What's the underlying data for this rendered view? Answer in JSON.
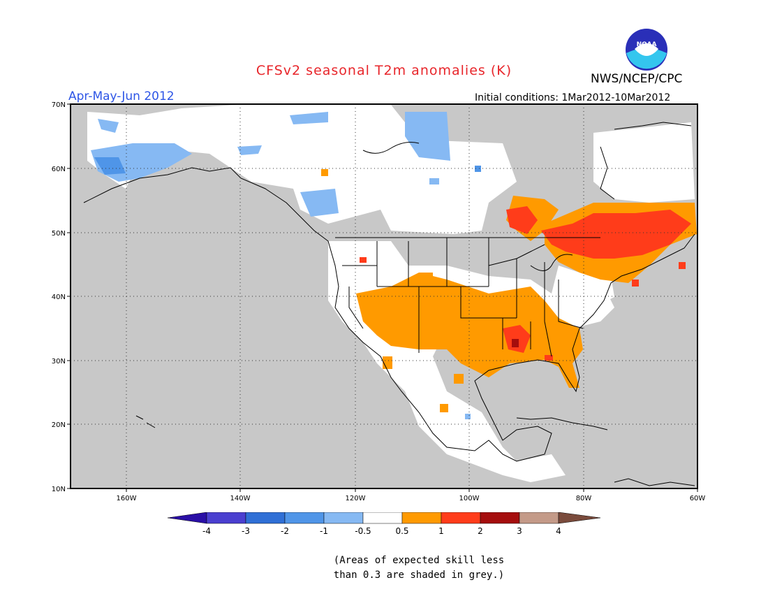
{
  "header": {
    "title": "CFSv2 seasonal T2m anomalies (K)",
    "period": "Apr-May-Jun 2012",
    "agency": "NWS/NCEP/CPC",
    "initial_conditions": "Initial conditions: 1Mar2012-10Mar2012",
    "logo_text": "NOAA"
  },
  "map": {
    "lat_labels": [
      "70N",
      "60N",
      "50N",
      "40N",
      "30N",
      "20N",
      "10N"
    ],
    "lon_labels": [
      "160W",
      "140W",
      "120W",
      "100W",
      "80W",
      "60W"
    ],
    "background_color": "#c8c8c8"
  },
  "colorbar": {
    "labels": [
      "-4",
      "-3",
      "-2",
      "-1",
      "-0.5",
      "0.5",
      "1",
      "2",
      "3",
      "4"
    ],
    "colors": [
      "#2a0fa6",
      "#4a3fd0",
      "#2f6fd6",
      "#4f95e8",
      "#86b9f3",
      "#ffffff",
      "#ff9a00",
      "#ff3c1a",
      "#a50d0d",
      "#c49a88",
      "#7a4b3c"
    ]
  },
  "note": {
    "line1": "(Areas of expected skill less",
    "line2": "than 0.3 are shaded in grey.)"
  }
}
